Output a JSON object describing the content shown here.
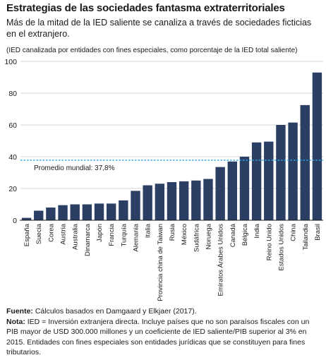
{
  "header": {
    "title": "Estrategias de las sociedades fantasma extraterritoriales",
    "subtitle": "Más de la mitad de la IED saliente se canaliza a través de sociedades ficticias en el extranjero.",
    "units_note": "(IED canalizada por entidades con fines especiales, como porcentaje de la IED total saliente)"
  },
  "chart_data": {
    "type": "bar",
    "categories": [
      "España",
      "Suecia",
      "Corea",
      "Austria",
      "Australia",
      "Dinamarca",
      "Japón",
      "Francia",
      "Turquía",
      "Alemania",
      "Italia",
      "Provincia china de Taiwan",
      "Rusia",
      "México",
      "Sudáfrica",
      "Noruega",
      "Emiratos Árabes Unidos",
      "Canadá",
      "Bélgica",
      "India",
      "Reino Unido",
      "Estados Unidos",
      "China",
      "Tailandia",
      "Brasil"
    ],
    "values": [
      1.5,
      6,
      8,
      9.5,
      10,
      10,
      10.5,
      10.5,
      12.5,
      18.5,
      22,
      23,
      24,
      24.5,
      25,
      26,
      33.5,
      37,
      40,
      49,
      49.5,
      60,
      61.5,
      72.5,
      93
    ],
    "ylim": [
      0,
      100
    ],
    "yticks": [
      0,
      20,
      40,
      60,
      80,
      100
    ],
    "reference_line": {
      "value": 37.8,
      "label": "Promedio mundial: 37,8%"
    },
    "bar_color": "#2b3e63",
    "reference_color": "#29a8e0",
    "grid": true
  },
  "footer": {
    "source_label": "Fuente:",
    "source_text": "Cálculos basados en Damgaard y Elkjaer (2017).",
    "note_label": "Nota:",
    "note_text": "IED = Inversión extranjera directa. Incluye países que no son paraísos fiscales con un PIB mayor de USD 300.000 millones y un coeficiente de IED saliente/PIB superior al 3% en 2015. Entidades con fines especiales son entidades jurídicas que se constituyen para fines tributarios."
  }
}
